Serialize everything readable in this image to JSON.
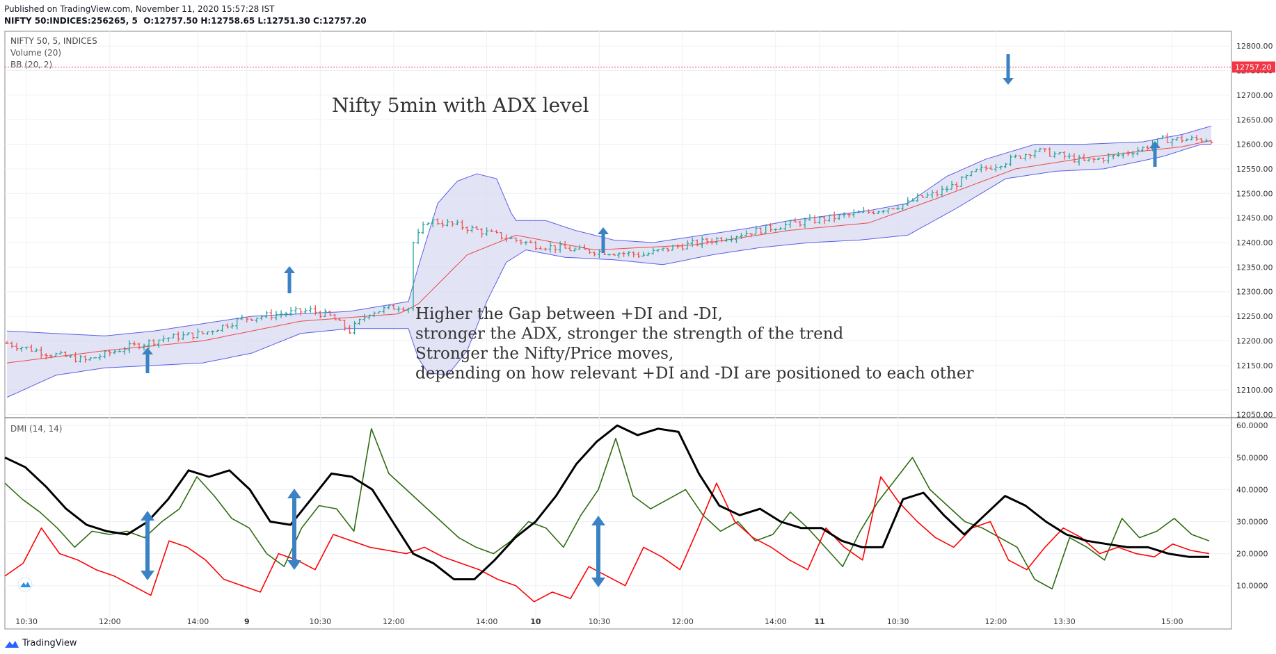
{
  "header": {
    "published": "Published on TradingView.com, November 11, 2020 15:57:28 IST",
    "symbol": "NIFTY 50:INDICES:256265, 5",
    "ohlc": "O:12757.50 H:12758.65 L:12751.30 C:12757.20"
  },
  "legend": {
    "symbol": "NIFTY 50, 5, INDICES",
    "volume": "Volume (20)",
    "bb": "BB (20, 2)",
    "dmi": "DMI (14, 14)"
  },
  "annotations": {
    "title": "Nifty 5min with ADX level",
    "note": [
      "Higher the Gap between +DI and -DI,",
      "stronger the ADX, stronger the strength of the trend",
      "Stronger the Nifty/Price moves,",
      "depending on how relevant +DI and -DI are positioned to each other"
    ]
  },
  "footer": {
    "brand": "TradingView"
  },
  "colors": {
    "up": "#26a69a",
    "down": "#ef5350",
    "bb_fill": "#d8d9f0",
    "bb_line": "#5b5ee6",
    "basis": "#e84a4a",
    "plus_di": "#2e6b0f",
    "minus_di": "#ff0000",
    "adx": "#000000",
    "arrow": "#3b82c4",
    "last_price": "#f23645"
  },
  "chart_data": [
    {
      "type": "candlestick",
      "name": "price",
      "x_ticks": [
        "10:30",
        "12:00",
        "14:00",
        "9",
        "10:30",
        "12:00",
        "14:00",
        "10",
        "10:30",
        "12:00",
        "14:00",
        "11",
        "10:30",
        "12:00",
        "13:30",
        "15:00"
      ],
      "y_ticks": [
        12050,
        12100,
        12150,
        12200,
        12250,
        12300,
        12350,
        12400,
        12450,
        12500,
        12550,
        12600,
        12650,
        12700,
        12750,
        12800
      ],
      "ylim": [
        12045,
        12830
      ],
      "last_price": "12757.20",
      "last_value": 12757.2,
      "bars": 247,
      "anchors": [
        [
          0,
          12195
        ],
        [
          8,
          12175
        ],
        [
          16,
          12160
        ],
        [
          24,
          12185
        ],
        [
          32,
          12205
        ],
        [
          40,
          12215
        ],
        [
          48,
          12245
        ],
        [
          56,
          12255
        ],
        [
          62,
          12262
        ],
        [
          66,
          12250
        ],
        [
          70,
          12220
        ],
        [
          74,
          12258
        ],
        [
          80,
          12270
        ],
        [
          82,
          12268
        ],
        [
          83,
          12400
        ],
        [
          86,
          12445
        ],
        [
          92,
          12435
        ],
        [
          100,
          12415
        ],
        [
          108,
          12395
        ],
        [
          116,
          12385
        ],
        [
          124,
          12380
        ],
        [
          130,
          12375
        ],
        [
          136,
          12390
        ],
        [
          144,
          12405
        ],
        [
          152,
          12422
        ],
        [
          160,
          12438
        ],
        [
          168,
          12450
        ],
        [
          176,
          12462
        ],
        [
          184,
          12480
        ],
        [
          186,
          12490
        ],
        [
          190,
          12500
        ],
        [
          194,
          12520
        ],
        [
          198,
          12545
        ],
        [
          204,
          12565
        ],
        [
          210,
          12588
        ],
        [
          216,
          12575
        ],
        [
          220,
          12565
        ],
        [
          226,
          12575
        ],
        [
          232,
          12592
        ],
        [
          236,
          12610
        ],
        [
          240,
          12610
        ]
      ],
      "bb_upper": [
        [
          0,
          12220
        ],
        [
          10,
          12215
        ],
        [
          20,
          12210
        ],
        [
          30,
          12220
        ],
        [
          40,
          12235
        ],
        [
          50,
          12250
        ],
        [
          60,
          12255
        ],
        [
          70,
          12260
        ],
        [
          82,
          12280
        ],
        [
          84,
          12350
        ],
        [
          88,
          12480
        ],
        [
          92,
          12525
        ],
        [
          96,
          12540
        ],
        [
          100,
          12530
        ],
        [
          103,
          12460
        ],
        [
          104,
          12445
        ],
        [
          110,
          12445
        ],
        [
          116,
          12425
        ],
        [
          124,
          12405
        ],
        [
          132,
          12400
        ],
        [
          142,
          12415
        ],
        [
          152,
          12430
        ],
        [
          160,
          12445
        ],
        [
          168,
          12455
        ],
        [
          176,
          12465
        ],
        [
          184,
          12480
        ],
        [
          192,
          12535
        ],
        [
          200,
          12570
        ],
        [
          210,
          12600
        ],
        [
          220,
          12600
        ],
        [
          232,
          12605
        ],
        [
          240,
          12620
        ],
        [
          247,
          12640
        ]
      ],
      "bb_lower": [
        [
          0,
          12085
        ],
        [
          10,
          12130
        ],
        [
          20,
          12145
        ],
        [
          30,
          12150
        ],
        [
          40,
          12155
        ],
        [
          50,
          12175
        ],
        [
          60,
          12215
        ],
        [
          70,
          12225
        ],
        [
          82,
          12225
        ],
        [
          84,
          12165
        ],
        [
          86,
          12135
        ],
        [
          90,
          12130
        ],
        [
          94,
          12180
        ],
        [
          98,
          12280
        ],
        [
          102,
          12360
        ],
        [
          106,
          12385
        ],
        [
          114,
          12370
        ],
        [
          124,
          12365
        ],
        [
          134,
          12355
        ],
        [
          144,
          12375
        ],
        [
          154,
          12390
        ],
        [
          164,
          12400
        ],
        [
          174,
          12405
        ],
        [
          184,
          12415
        ],
        [
          194,
          12470
        ],
        [
          204,
          12530
        ],
        [
          214,
          12545
        ],
        [
          224,
          12550
        ],
        [
          236,
          12575
        ],
        [
          244,
          12600
        ],
        [
          247,
          12600
        ]
      ],
      "bb_basis": [
        [
          0,
          12155
        ],
        [
          20,
          12180
        ],
        [
          40,
          12200
        ],
        [
          60,
          12240
        ],
        [
          80,
          12255
        ],
        [
          84,
          12275
        ],
        [
          94,
          12375
        ],
        [
          104,
          12415
        ],
        [
          120,
          12385
        ],
        [
          140,
          12395
        ],
        [
          160,
          12425
        ],
        [
          176,
          12440
        ],
        [
          190,
          12490
        ],
        [
          206,
          12550
        ],
        [
          222,
          12575
        ],
        [
          240,
          12595
        ],
        [
          247,
          12610
        ]
      ]
    },
    {
      "type": "line",
      "name": "DMI",
      "y_ticks": [
        10,
        20,
        30,
        40,
        50,
        60
      ],
      "ylim": [
        3,
        62
      ],
      "series": [
        {
          "name": "+DI",
          "color": "#2e6b0f",
          "values": [
            42,
            37,
            33,
            28,
            22,
            27,
            26,
            27,
            25,
            30,
            34,
            44,
            38,
            31,
            28,
            20,
            16,
            28,
            35,
            34,
            27,
            59,
            45,
            40,
            35,
            30,
            25,
            22,
            20,
            24,
            30,
            28,
            22,
            32,
            40,
            56,
            38,
            34,
            37,
            40,
            32,
            27,
            30,
            24,
            26,
            33,
            28,
            22,
            16,
            27,
            36,
            43,
            50,
            40,
            35,
            30,
            28,
            25,
            22,
            12,
            9,
            25,
            22,
            18,
            31,
            25,
            27,
            31,
            26,
            24
          ]
        },
        {
          "name": "-DI",
          "color": "#ff0000",
          "values": [
            13,
            17,
            28,
            20,
            18,
            15,
            13,
            10,
            7,
            24,
            22,
            18,
            12,
            10,
            8,
            20,
            18,
            15,
            26,
            24,
            22,
            21,
            20,
            22,
            19,
            17,
            15,
            12,
            10,
            5,
            8,
            6,
            16,
            13,
            10,
            22,
            19,
            15,
            28,
            42,
            30,
            25,
            22,
            18,
            15,
            28,
            22,
            18,
            44,
            36,
            30,
            25,
            22,
            28,
            30,
            18,
            15,
            22,
            28,
            25,
            20,
            22,
            20,
            19,
            23,
            21,
            20
          ]
        },
        {
          "name": "ADX",
          "color": "#000000",
          "values": [
            50,
            47,
            41,
            34,
            29,
            27,
            26,
            30,
            37,
            46,
            44,
            46,
            40,
            30,
            29,
            37,
            45,
            44,
            40,
            30,
            20,
            17,
            12,
            12,
            18,
            25,
            30,
            38,
            48,
            55,
            60,
            57,
            59,
            58,
            45,
            35,
            32,
            34,
            30,
            28,
            28,
            24,
            22,
            22,
            37,
            39,
            32,
            26,
            32,
            38,
            35,
            30,
            26,
            24,
            23,
            22,
            22,
            20,
            19,
            19
          ]
        }
      ]
    }
  ]
}
